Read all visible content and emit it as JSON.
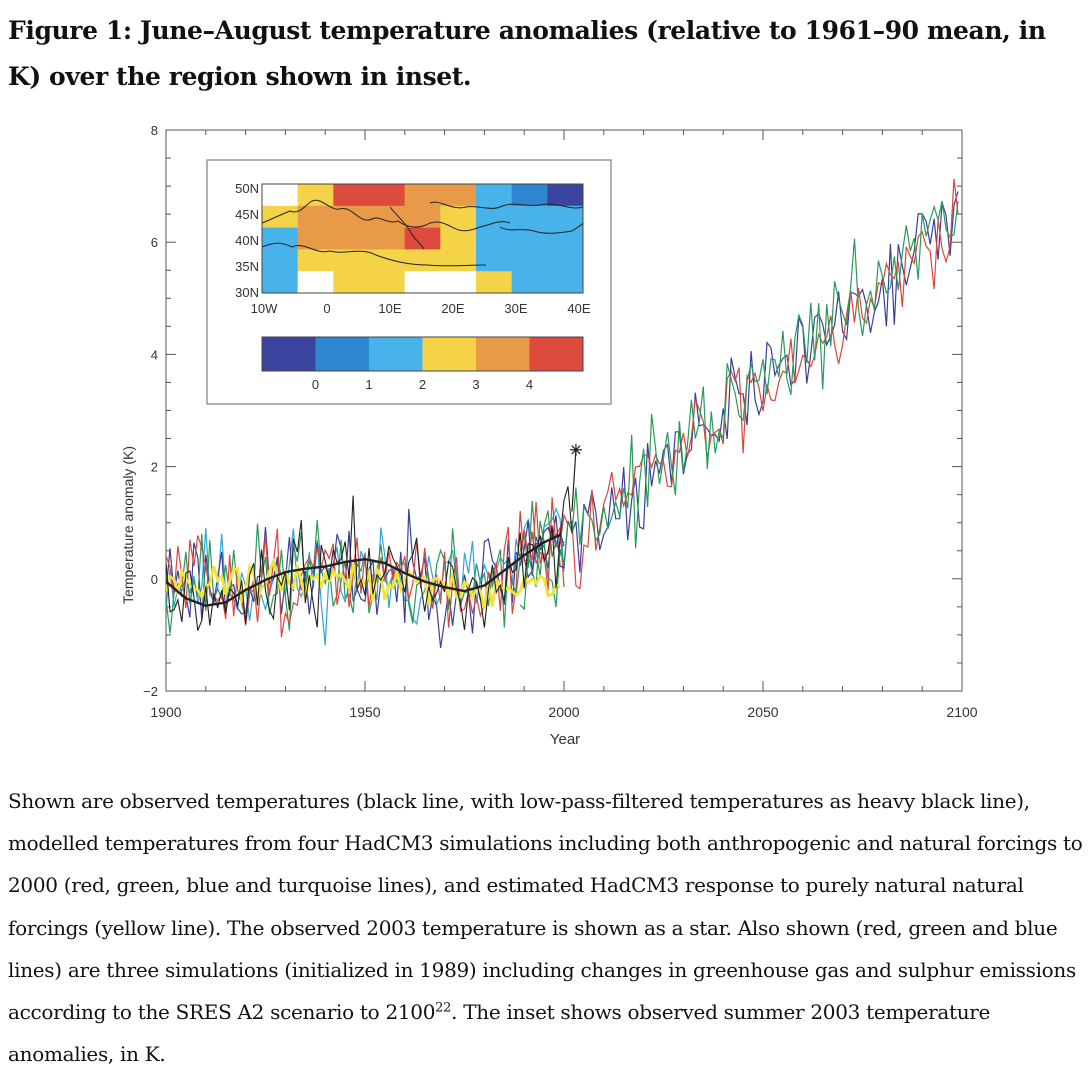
{
  "figure": {
    "title": "Figure 1: June–August temperature anomalies (relative to 1961–90 mean, in K) over the region shown in inset.",
    "caption_main": "Shown are observed temperatures (black line, with low-pass-filtered temperatures as heavy black line), modelled temperatures from four HadCM3 simulations including both anthropogenic and natural forcings to 2000 (red, green, blue and turquoise lines), and estimated HadCM3 response to purely natural natural forcings (yellow line). The observed 2003 temperature is shown as a star. Also shown (red, green and blue lines) are three simulations (initialized in 1989) including changes in greenhouse gas and sulphur emissions according to the SRES A2 scenario to 2100",
    "caption_ref": "22",
    "caption_end": ". The inset shows observed summer 2003 temperature anomalies, in K."
  },
  "chart_data": {
    "type": "line",
    "title": "",
    "xlabel": "Year",
    "ylabel": "Temperature anomaly (K)",
    "xlim": [
      1900,
      2100
    ],
    "ylim": [
      -2,
      8
    ],
    "x_ticks": [
      "1900",
      "1950",
      "2000",
      "2050",
      "2100"
    ],
    "y_ticks": [
      "−2",
      "0",
      "2",
      "4",
      "6",
      "8"
    ],
    "colors": {
      "observed": "#222222",
      "red": "#d9463e",
      "green": "#2a9a58",
      "blue": "#3a3f9a",
      "turquoise": "#2fa6d8",
      "natural": "#f2e33a"
    },
    "smoothed_observed": {
      "x": [
        1900,
        1905,
        1910,
        1915,
        1920,
        1925,
        1930,
        1935,
        1940,
        1945,
        1950,
        1955,
        1960,
        1965,
        1970,
        1975,
        1980,
        1985,
        1990,
        1995,
        1999
      ],
      "y": [
        -0.05,
        -0.35,
        -0.48,
        -0.42,
        -0.2,
        -0.02,
        0.12,
        0.18,
        0.22,
        0.3,
        0.35,
        0.28,
        0.1,
        -0.05,
        -0.15,
        -0.22,
        -0.12,
        0.15,
        0.42,
        0.65,
        0.78
      ]
    },
    "star_2003": {
      "x": 2003,
      "y": 2.3
    },
    "observed_end": {
      "x": 2002,
      "y": 1.2
    },
    "model_trend": {
      "x": [
        1900,
        1920,
        1940,
        1960,
        1975,
        1985,
        1995,
        2000,
        2010,
        2020,
        2030,
        2040,
        2050,
        2060,
        2070,
        2080,
        2090,
        2099
      ],
      "y": [
        0.05,
        -0.05,
        0.05,
        0.0,
        -0.1,
        0.1,
        0.6,
        0.8,
        1.2,
        1.7,
        2.3,
        2.9,
        3.5,
        4.1,
        4.7,
        5.3,
        5.9,
        6.7
      ]
    },
    "natural_trend": {
      "x": [
        1900,
        1920,
        1940,
        1960,
        1975,
        1985,
        1995,
        2000
      ],
      "y": [
        -0.05,
        -0.05,
        0.0,
        -0.05,
        -0.15,
        -0.2,
        -0.2,
        -0.05
      ]
    },
    "inset": {
      "lat_labels": [
        "50N",
        "45N",
        "40N",
        "35N",
        "30N"
      ],
      "lon_labels": [
        "10W",
        "0",
        "10E",
        "20E",
        "30E",
        "40E"
      ],
      "colorbar_labels": [
        "0",
        "1",
        "2",
        "3",
        "4"
      ],
      "colorbar_colors": [
        "#3b45a0",
        "#2f86d0",
        "#48b3ea",
        "#f5d348",
        "#e99a48",
        "#dd4a3e"
      ],
      "grid": [
        [
          -9,
          3,
          5,
          5,
          4,
          4,
          2,
          1,
          0
        ],
        [
          3,
          4,
          4,
          4,
          4,
          3,
          2,
          2,
          2
        ],
        [
          2,
          4,
          4,
          4,
          5,
          3,
          2,
          2,
          2
        ],
        [
          2,
          3,
          3,
          3,
          3,
          3,
          2,
          2,
          2
        ],
        [
          2,
          -9,
          3,
          3,
          -9,
          -9,
          3,
          2,
          2
        ]
      ]
    }
  }
}
